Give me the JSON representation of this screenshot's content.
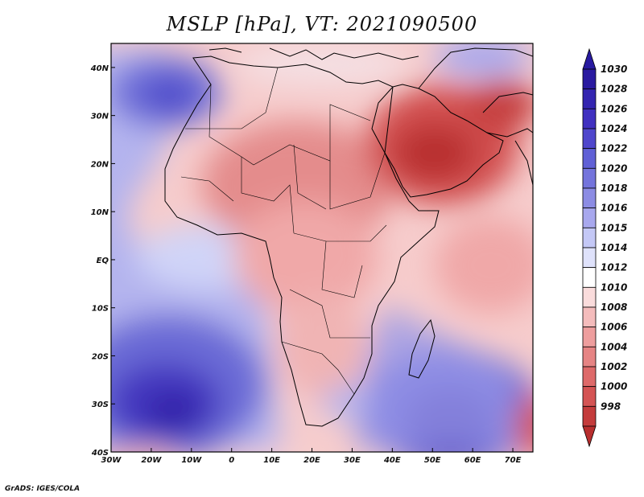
{
  "title": "MSLP [hPa], VT: 2021090500",
  "credit": "GrADS: IGES/COLA",
  "map": {
    "projection": "lat-lon",
    "lon_range": [
      -30,
      75
    ],
    "lat_range": [
      -40,
      45
    ],
    "lon_ticks": [
      {
        "value": -30,
        "label": "30W"
      },
      {
        "value": -20,
        "label": "20W"
      },
      {
        "value": -10,
        "label": "10W"
      },
      {
        "value": 0,
        "label": "0"
      },
      {
        "value": 10,
        "label": "10E"
      },
      {
        "value": 20,
        "label": "20E"
      },
      {
        "value": 30,
        "label": "30E"
      },
      {
        "value": 40,
        "label": "40E"
      },
      {
        "value": 50,
        "label": "50E"
      },
      {
        "value": 60,
        "label": "60E"
      },
      {
        "value": 70,
        "label": "70E"
      }
    ],
    "lat_ticks": [
      {
        "value": 40,
        "label": "40N"
      },
      {
        "value": 30,
        "label": "30N"
      },
      {
        "value": 20,
        "label": "20N"
      },
      {
        "value": 10,
        "label": "10N"
      },
      {
        "value": 0,
        "label": "EQ"
      },
      {
        "value": -10,
        "label": "10S"
      },
      {
        "value": -20,
        "label": "20S"
      },
      {
        "value": -30,
        "label": "30S"
      },
      {
        "value": -40,
        "label": "40S"
      }
    ]
  },
  "colorbar": {
    "levels": [
      {
        "label": "1030",
        "color": "#2a1aa0"
      },
      {
        "label": "1028",
        "color": "#3425b0"
      },
      {
        "label": "1026",
        "color": "#4030c0"
      },
      {
        "label": "1024",
        "color": "#4f46cc"
      },
      {
        "label": "1022",
        "color": "#6060d6"
      },
      {
        "label": "1020",
        "color": "#7474dc"
      },
      {
        "label": "1018",
        "color": "#8c8ce4"
      },
      {
        "label": "1016",
        "color": "#a8a8ee"
      },
      {
        "label": "1015",
        "color": "#c4c8f6"
      },
      {
        "label": "1014",
        "color": "#dfe2fb"
      },
      {
        "label": "1012",
        "color": "#ffffff"
      },
      {
        "label": "1010",
        "color": "#fadcdc"
      },
      {
        "label": "1008",
        "color": "#f4bcbc"
      },
      {
        "label": "1006",
        "color": "#ee9e9e"
      },
      {
        "label": "1004",
        "color": "#e68484"
      },
      {
        "label": "1002",
        "color": "#de6a6a"
      },
      {
        "label": "1000",
        "color": "#d45454"
      },
      {
        "label": "998",
        "color": "#c43c3c"
      }
    ],
    "top_color": "#281aa0",
    "bottom_color": "#b82e2e"
  }
}
